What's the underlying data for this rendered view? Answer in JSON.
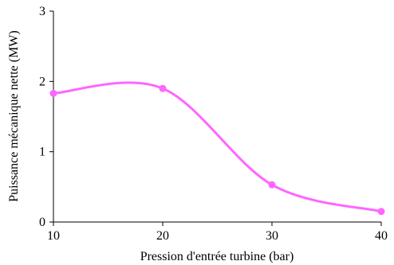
{
  "chart_data": {
    "type": "line",
    "title": "",
    "xlabel": "Pression d'entrée turbine (bar)",
    "ylabel": "Puissance mécanique nette (MW)",
    "xlim": [
      10,
      40
    ],
    "ylim": [
      0,
      3
    ],
    "x_ticks": [
      "10",
      "20",
      "30",
      "40"
    ],
    "y_ticks": [
      "0",
      "1",
      "2",
      "3"
    ],
    "grid": false,
    "smooth": true,
    "series": [
      {
        "x": [
          10,
          20,
          30,
          40
        ],
        "values": [
          1.83,
          1.9,
          0.53,
          0.15
        ],
        "color": "#ff66ff",
        "marker": "circle"
      }
    ]
  }
}
